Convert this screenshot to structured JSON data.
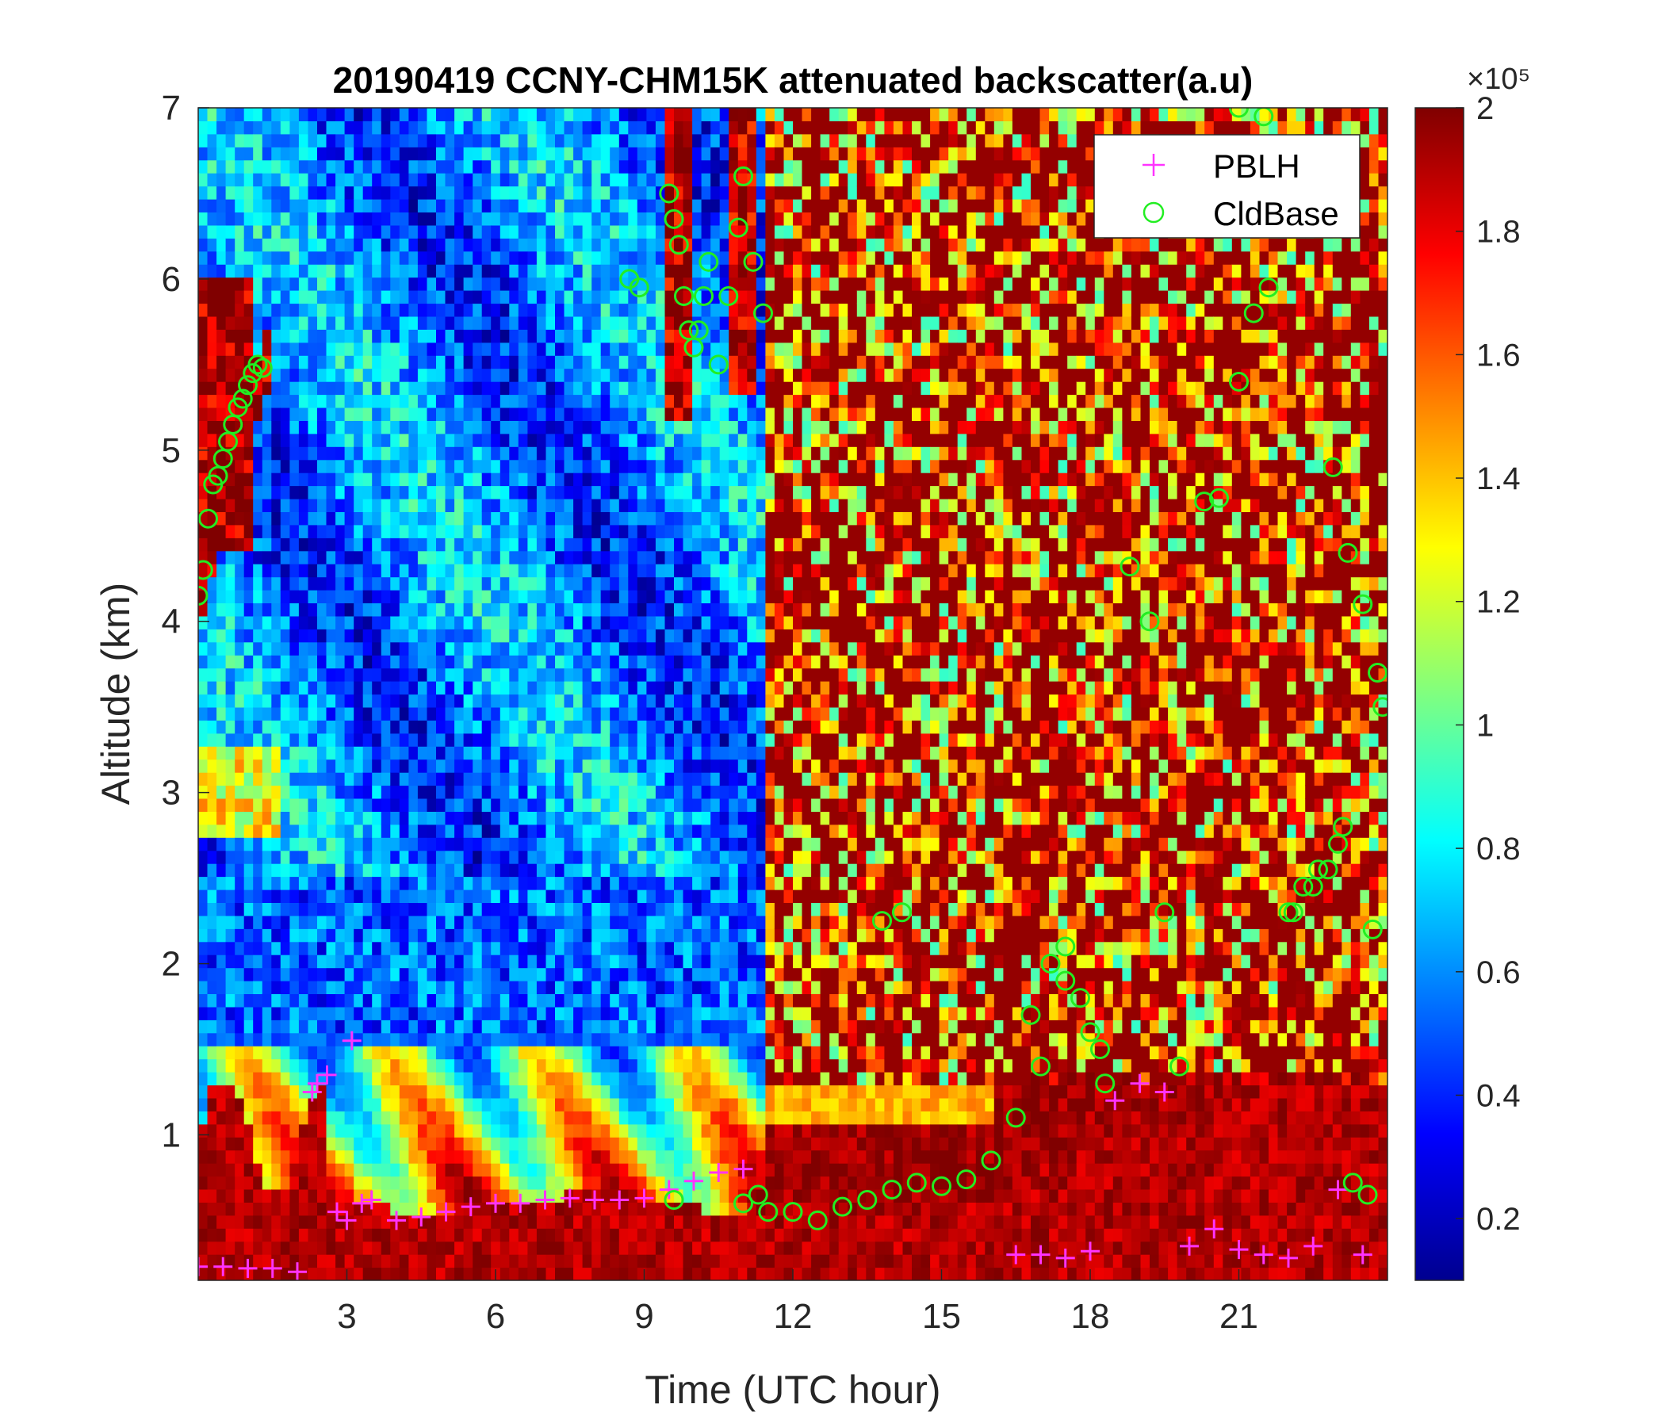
{
  "chart_data": {
    "type": "heatmap",
    "title": "20190419 CCNY-CHM15K attenuated backscatter(a.u)",
    "xlabel": "Time (UTC hour)",
    "ylabel": "Altitude (km)",
    "xlim": [
      0,
      24
    ],
    "ylim": [
      0.15,
      7
    ],
    "x_ticks": [
      "3",
      "6",
      "9",
      "12",
      "15",
      "18",
      "21"
    ],
    "y_ticks": [
      "1",
      "2",
      "3",
      "4",
      "5",
      "6",
      "7"
    ],
    "colorbar": {
      "range": [
        0.1,
        2
      ],
      "exponent_label": "×10⁵",
      "exponent": 5,
      "ticks": [
        "0.2",
        "0.4",
        "0.6",
        "0.8",
        "1",
        "1.2",
        "1.4",
        "1.6",
        "1.8",
        "2"
      ],
      "colormap": "jet"
    },
    "legend": {
      "position": "top-right",
      "entries": [
        {
          "label": "PBLH",
          "marker": "+",
          "color": "#ff33ff"
        },
        {
          "label": "CldBase",
          "marker": "o",
          "color": "#22ee22"
        }
      ]
    },
    "series": [
      {
        "name": "PBLH",
        "marker": "+",
        "color": "#ff33ff",
        "x": [
          0.0,
          0.5,
          1.0,
          1.5,
          2.0,
          2.3,
          2.4,
          2.6,
          2.8,
          3.0,
          3.1,
          3.3,
          3.5,
          4.0,
          4.5,
          5.0,
          5.5,
          6.0,
          6.5,
          7.0,
          7.5,
          8.0,
          8.5,
          9.0,
          9.5,
          10.0,
          10.5,
          11.0,
          16.5,
          17.0,
          17.5,
          18.0,
          18.5,
          19.0,
          19.5,
          20.0,
          20.5,
          21.0,
          21.5,
          22.0,
          22.5,
          23.0,
          23.5
        ],
        "y": [
          0.23,
          0.23,
          0.22,
          0.22,
          0.2,
          1.25,
          1.3,
          1.35,
          0.55,
          0.5,
          1.55,
          0.6,
          0.62,
          0.5,
          0.52,
          0.55,
          0.58,
          0.6,
          0.6,
          0.62,
          0.63,
          0.62,
          0.62,
          0.63,
          0.68,
          0.73,
          0.78,
          0.8,
          0.3,
          0.3,
          0.28,
          0.32,
          1.2,
          1.3,
          1.25,
          0.35,
          0.45,
          0.33,
          0.3,
          0.28,
          0.35,
          0.68,
          0.3
        ]
      },
      {
        "name": "CldBase",
        "marker": "o",
        "color": "#22ee22",
        "x": [
          0.0,
          0.1,
          0.2,
          0.3,
          0.4,
          0.5,
          0.6,
          0.7,
          0.8,
          0.9,
          1.0,
          1.1,
          1.2,
          1.3,
          8.7,
          8.9,
          9.5,
          9.6,
          9.7,
          9.8,
          9.9,
          10.0,
          10.1,
          10.2,
          10.3,
          10.5,
          10.7,
          10.9,
          11.0,
          11.2,
          11.4,
          9.6,
          11.0,
          11.3,
          11.5,
          12.0,
          12.5,
          13.0,
          13.5,
          14.0,
          14.5,
          15.0,
          15.5,
          16.0,
          16.5,
          17.0,
          17.5,
          18.0,
          18.3,
          13.8,
          14.2,
          16.8,
          17.2,
          17.5,
          17.8,
          18.2,
          18.8,
          19.2,
          19.5,
          19.8,
          20.3,
          20.6,
          21.0,
          21.3,
          21.6,
          22.1,
          22.3,
          22.6,
          22.9,
          23.2,
          23.5,
          23.7,
          23.9,
          21.0,
          21.5,
          22.0,
          22.5,
          22.8,
          23.0,
          23.1,
          23.3,
          23.6,
          23.8
        ],
        "y": [
          4.15,
          4.3,
          4.6,
          4.8,
          4.85,
          4.95,
          5.05,
          5.15,
          5.25,
          5.3,
          5.38,
          5.45,
          5.5,
          5.48,
          6.0,
          5.95,
          6.5,
          6.35,
          6.2,
          5.9,
          5.7,
          5.6,
          5.7,
          5.9,
          6.1,
          5.5,
          5.9,
          6.3,
          6.6,
          6.1,
          5.8,
          0.62,
          0.6,
          0.65,
          0.55,
          0.55,
          0.5,
          0.58,
          0.62,
          0.68,
          0.72,
          0.7,
          0.74,
          0.85,
          1.1,
          1.4,
          1.9,
          1.6,
          1.3,
          2.25,
          2.3,
          1.7,
          2.0,
          2.1,
          1.8,
          1.5,
          4.32,
          4.0,
          2.3,
          1.4,
          4.7,
          4.72,
          5.4,
          5.8,
          5.95,
          2.3,
          2.45,
          2.55,
          4.9,
          4.4,
          4.1,
          2.2,
          3.5,
          7.0,
          6.95,
          2.3,
          2.45,
          2.55,
          2.7,
          2.8,
          0.72,
          0.65,
          3.7
        ]
      }
    ]
  }
}
